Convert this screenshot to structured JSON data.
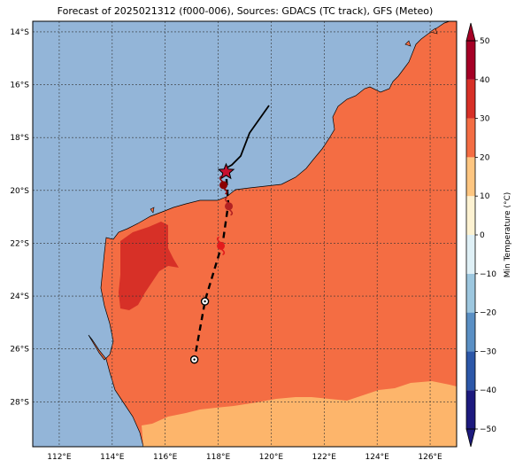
{
  "title": "Forecast of 2025021312 (f000-006), Sources: GDACS (TC track), GFS (Meteo)",
  "map": {
    "lon_range": [
      111,
      127
    ],
    "lat_range": [
      -29.7,
      -13.6
    ],
    "lon_ticks": [
      "112°E",
      "114°E",
      "116°E",
      "118°E",
      "120°E",
      "122°E",
      "124°E",
      "126°E"
    ],
    "lat_ticks": [
      "14°S",
      "16°S",
      "18°S",
      "20°S",
      "22°S",
      "24°S",
      "26°S",
      "28°S"
    ],
    "ocean_color": "#93b5d8",
    "grid": "dotted"
  },
  "colorbar": {
    "label": "Min Temperature (°C)",
    "ticks": [
      "50",
      "40",
      "30",
      "20",
      "10",
      "0",
      "−10",
      "−20",
      "−30",
      "−40",
      "−50"
    ],
    "bands": [
      "#1d1a7e",
      "#2c57a8",
      "#5a8fc4",
      "#9dc7df",
      "#dff0f6",
      "#fdf2d2",
      "#fec681",
      "#f46d43",
      "#d73027",
      "#a50026"
    ]
  },
  "track": {
    "observed_color": "#000000",
    "forecast_style": "dashed",
    "points": [
      {
        "lon": 118.3,
        "lat": -19.3,
        "marker": "star",
        "color": "#c8102e"
      },
      {
        "lon": 118.2,
        "lat": -19.8,
        "marker": "cyclone",
        "color": "#8b0000"
      },
      {
        "lon": 118.4,
        "lat": -20.6,
        "marker": "cyclone",
        "color": "#b22222"
      },
      {
        "lon": 118.1,
        "lat": -22.1,
        "marker": "cyclone",
        "color": "#e31a1c"
      },
      {
        "lon": 117.5,
        "lat": -24.2,
        "marker": "low",
        "color": "#000000"
      },
      {
        "lon": 117.1,
        "lat": -26.4,
        "marker": "low",
        "color": "#000000"
      }
    ]
  }
}
